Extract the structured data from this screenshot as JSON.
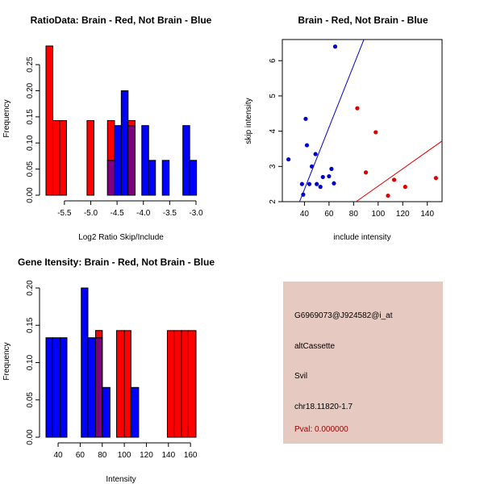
{
  "colors": {
    "red": "#ff0000",
    "blue": "#0000ff",
    "overlap": "#7f007f",
    "scatter_red": "#dd0000",
    "scatter_blue": "#0000cc",
    "pval": "#990000",
    "panel_bg": "#e6c9c1"
  },
  "chart_data": [
    {
      "id": "ratio",
      "type": "bar",
      "title": "RatioData: Brain - Red, Not Brain - Blue",
      "xlabel": "Log2 Ratio Skip/Include",
      "ylabel": "Frequency",
      "xlim": [
        -5.85,
        -3.0
      ],
      "ylim": [
        0,
        0.2857
      ],
      "xticks": [
        -5.5,
        -5.0,
        -4.5,
        -4.0,
        -3.5,
        -3.0
      ],
      "xtick_labels": [
        "-5.5",
        "-5.0",
        "-4.5",
        "-4.0",
        "-3.5",
        "-3.0"
      ],
      "yticks": [
        0,
        0.05,
        0.1,
        0.15,
        0.2,
        0.25
      ],
      "ytick_labels": [
        "0.00",
        "0.05",
        "0.10",
        "0.15",
        "0.20",
        "0.25"
      ],
      "series": [
        {
          "name": "Brain",
          "color": "red",
          "bars": [
            {
              "x0": -5.85,
              "x1": -5.72,
              "v": 0.2857
            },
            {
              "x0": -5.72,
              "x1": -5.59,
              "v": 0.1429
            },
            {
              "x0": -5.59,
              "x1": -5.46,
              "v": 0.1429
            },
            {
              "x0": -5.07,
              "x1": -4.94,
              "v": 0.1429
            },
            {
              "x0": -4.68,
              "x1": -4.55,
              "v": 0.1429
            },
            {
              "x0": -4.29,
              "x1": -4.16,
              "v": 0.1429
            }
          ]
        },
        {
          "name": "Not Brain",
          "color": "blue",
          "bars": [
            {
              "x0": -4.68,
              "x1": -4.55,
              "v": 0.0667
            },
            {
              "x0": -4.55,
              "x1": -4.42,
              "v": 0.1333
            },
            {
              "x0": -4.42,
              "x1": -4.29,
              "v": 0.2
            },
            {
              "x0": -4.29,
              "x1": -4.16,
              "v": 0.1333
            },
            {
              "x0": -4.03,
              "x1": -3.9,
              "v": 0.1333
            },
            {
              "x0": -3.9,
              "x1": -3.77,
              "v": 0.0667
            },
            {
              "x0": -3.64,
              "x1": -3.51,
              "v": 0.0667
            },
            {
              "x0": -3.25,
              "x1": -3.12,
              "v": 0.1333
            },
            {
              "x0": -3.12,
              "x1": -2.99,
              "v": 0.0667
            }
          ]
        }
      ]
    },
    {
      "id": "scatter",
      "type": "scatter",
      "title": "Brain - Red, Not Brain - Blue",
      "xlabel": "include intensity",
      "ylabel": "skip intensity",
      "xlim": [
        22,
        152
      ],
      "ylim": [
        2.0,
        6.6
      ],
      "xticks": [
        40,
        60,
        80,
        100,
        120,
        140
      ],
      "xtick_labels": [
        "40",
        "60",
        "80",
        "100",
        "120",
        "140"
      ],
      "yticks": [
        2,
        3,
        4,
        5,
        6
      ],
      "ytick_labels": [
        "2",
        "3",
        "4",
        "5",
        "6"
      ],
      "series": [
        {
          "name": "Not Brain",
          "color": "scatter_blue",
          "points": [
            [
              27,
              3.2
            ],
            [
              38,
              2.5
            ],
            [
              39,
              2.2
            ],
            [
              41,
              4.35
            ],
            [
              42,
              3.6
            ],
            [
              44,
              2.5
            ],
            [
              46,
              3.0
            ],
            [
              49,
              3.35
            ],
            [
              50,
              2.5
            ],
            [
              53,
              2.42
            ],
            [
              55,
              2.7
            ],
            [
              60,
              2.72
            ],
            [
              62,
              2.93
            ],
            [
              64,
              2.52
            ],
            [
              65,
              6.4
            ]
          ]
        },
        {
          "name": "Brain",
          "color": "scatter_red",
          "points": [
            [
              83,
              4.65
            ],
            [
              90,
              2.83
            ],
            [
              98,
              3.97
            ],
            [
              108,
              2.17
            ],
            [
              113,
              2.62
            ],
            [
              122,
              2.42
            ],
            [
              147,
              2.67
            ]
          ]
        }
      ],
      "fit_lines": [
        {
          "color": "scatter_blue",
          "from": [
            36,
            2.0
          ],
          "to": [
            110,
            8.5
          ]
        },
        {
          "color": "scatter_red",
          "from": [
            82,
            2.0
          ],
          "to": [
            152,
            3.72
          ]
        }
      ]
    },
    {
      "id": "gene",
      "type": "bar",
      "title": "Gene Itensity: Brain - Red, Not Brain - Blue",
      "xlabel": "Intensity",
      "ylabel": "Frequency",
      "xlim": [
        29,
        165
      ],
      "ylim": [
        0,
        0.2
      ],
      "xticks": [
        40,
        60,
        80,
        100,
        120,
        140,
        160
      ],
      "xtick_labels": [
        "40",
        "60",
        "80",
        "100",
        "120",
        "140",
        "160"
      ],
      "yticks": [
        0,
        0.05,
        0.1,
        0.15,
        0.2
      ],
      "ytick_labels": [
        "0.00",
        "0.05",
        "0.10",
        "0.15",
        "0.20"
      ],
      "series": [
        {
          "name": "Brain",
          "color": "red",
          "bars": [
            {
              "x0": 74,
              "x1": 80,
              "v": 0.1429
            },
            {
              "x0": 93,
              "x1": 100,
              "v": 0.1429
            },
            {
              "x0": 100,
              "x1": 106,
              "v": 0.1429
            },
            {
              "x0": 139,
              "x1": 145,
              "v": 0.1429
            },
            {
              "x0": 145,
              "x1": 152,
              "v": 0.1429
            },
            {
              "x0": 152,
              "x1": 158,
              "v": 0.1429
            },
            {
              "x0": 158,
              "x1": 165,
              "v": 0.1429
            }
          ]
        },
        {
          "name": "Not Brain",
          "color": "blue",
          "bars": [
            {
              "x0": 29,
              "x1": 35,
              "v": 0.1333
            },
            {
              "x0": 35,
              "x1": 42,
              "v": 0.1333
            },
            {
              "x0": 42,
              "x1": 48,
              "v": 0.1333
            },
            {
              "x0": 61,
              "x1": 67,
              "v": 0.2
            },
            {
              "x0": 67,
              "x1": 74,
              "v": 0.1333
            },
            {
              "x0": 74,
              "x1": 80,
              "v": 0.1333
            },
            {
              "x0": 80,
              "x1": 87,
              "v": 0.0667
            },
            {
              "x0": 106,
              "x1": 113,
              "v": 0.0667
            }
          ]
        }
      ]
    }
  ],
  "info": {
    "probe_id": "G6969073@J924582@i_at",
    "event_type": "altCassette",
    "gene": "Svil",
    "location": "chr18.11820-1.7",
    "pval": "Pval: 0.000000"
  }
}
